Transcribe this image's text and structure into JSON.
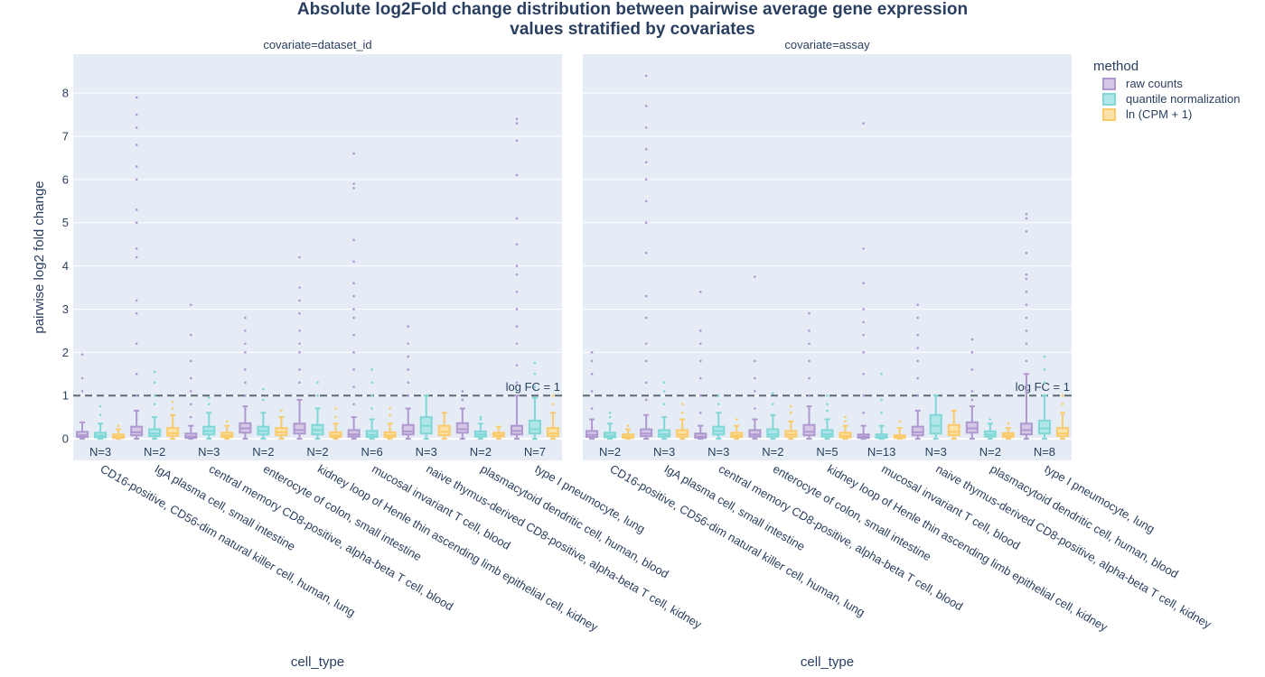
{
  "chart_data": {
    "type": "box",
    "title": "Absolute log2Fold change distribution between pairwise average gene expression values stratified by covariates",
    "title_lines": [
      "Absolute log2Fold change distribution between pairwise average gene expression",
      "values stratified by covariates"
    ],
    "ylabel": "pairwise log2 fold change",
    "xlabel": "cell_type",
    "ylim": [
      -0.5,
      8.9
    ],
    "yticks": [
      0,
      1,
      2,
      3,
      4,
      5,
      6,
      7,
      8
    ],
    "grid": true,
    "legend_title": "method",
    "legend_placement": "top-right",
    "colors": {
      "raw counts": "#b39bd0",
      "quantile normalization": "#7fdad8",
      "ln (CPM + 1)": "#fdd27c",
      "background": "#e5ecf6",
      "text": "#2a3f5f"
    },
    "series": [
      {
        "name": "raw counts",
        "fill": "#d5c7e6",
        "stroke": "#ae98cf"
      },
      {
        "name": "quantile normalization",
        "fill": "#b0e6ea",
        "stroke": "#7fd7d6"
      },
      {
        "name": "ln (CPM + 1)",
        "fill": "#fde2a8",
        "stroke": "#f9cb6c"
      }
    ],
    "categories": [
      "CD16-positive, CD56-dim natural killer cell, human, lung",
      "IgA plasma cell, small intestine",
      "central memory CD8-positive, alpha-beta T cell, blood",
      "enterocyte of colon, small intestine",
      "kidney loop of Henle thin ascending limb epithelial cell, kidney",
      "mucosal invariant T cell, blood",
      "naive thymus-derived CD8-positive, alpha-beta T cell, kidney",
      "plasmacytoid dendritic cell, human, blood",
      "type I pneumocyte, lung"
    ],
    "reference_line": {
      "y": 1,
      "label": "log FC = 1"
    },
    "panels": [
      {
        "label": "covariate=dataset_id",
        "counts": [
          "N=3",
          "N=2",
          "N=3",
          "N=2",
          "N=2",
          "N=6",
          "N=3",
          "N=2",
          "N=7"
        ],
        "boxes": [
          [
            [
              0,
              0.04,
              0.08,
              0.16,
              0.38,
              [
                1.1,
                1.4,
                1.95
              ]
            ],
            [
              0,
              0.03,
              0.07,
              0.14,
              0.35,
              [
                0.55,
                0.75
              ]
            ],
            [
              0,
              0.02,
              0.05,
              0.1,
              0.22,
              [
                0.3
              ]
            ]
          ],
          [
            [
              0,
              0.08,
              0.15,
              0.28,
              0.65,
              [
                1.0,
                1.5,
                2.2,
                2.9,
                3.2,
                4.2,
                4.4,
                5.0,
                5.3,
                6.0,
                6.3,
                6.8,
                7.2,
                7.5,
                7.9
              ]
            ],
            [
              0,
              0.06,
              0.12,
              0.22,
              0.5,
              [
                0.8,
                1.0,
                1.3,
                1.55
              ]
            ],
            [
              0,
              0.07,
              0.13,
              0.25,
              0.55,
              [
                0.7,
                0.85
              ]
            ]
          ],
          [
            [
              0,
              0.02,
              0.05,
              0.12,
              0.3,
              [
                0.5,
                0.8,
                1.1,
                1.4,
                1.8,
                2.4,
                3.1
              ]
            ],
            [
              0,
              0.1,
              0.18,
              0.28,
              0.6,
              [
                0.8,
                0.95
              ]
            ],
            [
              0,
              0.04,
              0.08,
              0.14,
              0.3,
              [
                0.4
              ]
            ]
          ],
          [
            [
              0,
              0.14,
              0.24,
              0.36,
              0.75,
              [
                1.0,
                1.3,
                1.6,
                2.0,
                2.2,
                2.5,
                2.8
              ]
            ],
            [
              0,
              0.1,
              0.18,
              0.28,
              0.6,
              [
                0.9,
                1.15
              ]
            ],
            [
              0,
              0.08,
              0.15,
              0.25,
              0.5,
              [
                0.65
              ]
            ]
          ],
          [
            [
              0,
              0.12,
              0.2,
              0.35,
              0.9,
              [
                1.3,
                1.6,
                2.0,
                2.2,
                2.5,
                2.9,
                3.2,
                3.5,
                4.2
              ]
            ],
            [
              0,
              0.1,
              0.2,
              0.32,
              0.7,
              [
                1.0,
                1.3
              ]
            ],
            [
              0,
              0.04,
              0.08,
              0.15,
              0.35,
              [
                0.5,
                0.7
              ]
            ]
          ],
          [
            [
              0,
              0.05,
              0.1,
              0.2,
              0.5,
              [
                0.8,
                1.2,
                1.6,
                2.0,
                2.4,
                2.8,
                3.0,
                3.3,
                3.6,
                4.1,
                4.6,
                5.8,
                5.9,
                6.6
              ]
            ],
            [
              0,
              0.04,
              0.09,
              0.18,
              0.45,
              [
                0.7,
                1.0,
                1.3,
                1.6
              ]
            ],
            [
              0,
              0.04,
              0.08,
              0.15,
              0.35,
              [
                0.55,
                0.7
              ]
            ]
          ],
          [
            [
              0,
              0.1,
              0.17,
              0.32,
              0.7,
              [
                1.0,
                1.3,
                1.6,
                1.9,
                2.2,
                2.6
              ]
            ],
            [
              0,
              0.12,
              0.3,
              0.5,
              1.0,
              []
            ],
            [
              0,
              0.08,
              0.16,
              0.3,
              0.6,
              []
            ]
          ],
          [
            [
              0,
              0.14,
              0.22,
              0.36,
              0.7,
              [
                0.9,
                1.1
              ]
            ],
            [
              0,
              0.05,
              0.1,
              0.17,
              0.35,
              [
                0.45,
                0.5
              ]
            ],
            [
              0,
              0.05,
              0.09,
              0.14,
              0.28,
              []
            ]
          ],
          [
            [
              0,
              0.1,
              0.18,
              0.3,
              1.0,
              [
                1.3,
                1.7,
                2.2,
                2.6,
                3.0,
                3.4,
                3.8,
                4.0,
                4.5,
                5.1,
                6.1,
                6.9,
                7.3,
                7.4
              ]
            ],
            [
              0,
              0.12,
              0.22,
              0.42,
              0.95,
              [
                1.2,
                1.5,
                1.75
              ]
            ],
            [
              0,
              0.06,
              0.12,
              0.25,
              0.6,
              [
                0.8,
                1.0
              ]
            ]
          ]
        ]
      },
      {
        "label": "covariate=assay",
        "counts": [
          "N=2",
          "N=3",
          "N=3",
          "N=2",
          "N=5",
          "N=13",
          "N=3",
          "N=2",
          "N=8"
        ],
        "boxes": [
          [
            [
              0,
              0.04,
              0.09,
              0.18,
              0.45,
              [
                0.7,
                1.1,
                1.5,
                1.8,
                2.0
              ]
            ],
            [
              0,
              0.03,
              0.07,
              0.14,
              0.35,
              [
                0.5,
                0.6
              ]
            ],
            [
              0,
              0.02,
              0.05,
              0.1,
              0.22,
              [
                0.3
              ]
            ]
          ],
          [
            [
              0,
              0.06,
              0.12,
              0.22,
              0.55,
              [
                0.9,
                1.3,
                1.8,
                2.2,
                2.8,
                3.3,
                4.3,
                5.0,
                5.5,
                6.0,
                6.4,
                6.7,
                7.2,
                7.7,
                8.4
              ]
            ],
            [
              0,
              0.05,
              0.1,
              0.2,
              0.5,
              [
                0.8,
                1.1,
                1.3
              ]
            ],
            [
              0,
              0.05,
              0.1,
              0.2,
              0.45,
              [
                0.6,
                0.8
              ]
            ]
          ],
          [
            [
              0,
              0.02,
              0.05,
              0.12,
              0.3,
              [
                0.6,
                1.0,
                1.4,
                1.8,
                2.2,
                2.5,
                3.4
              ]
            ],
            [
              0,
              0.1,
              0.18,
              0.28,
              0.6,
              [
                0.8,
                1.0
              ]
            ],
            [
              0,
              0.04,
              0.08,
              0.14,
              0.3,
              [
                0.45
              ]
            ]
          ],
          [
            [
              0,
              0.05,
              0.1,
              0.2,
              0.45,
              [
                0.7,
                1.1,
                1.4,
                1.8,
                3.75
              ]
            ],
            [
              0,
              0.05,
              0.1,
              0.22,
              0.55,
              [
                0.8,
                1.05
              ]
            ],
            [
              0,
              0.05,
              0.1,
              0.18,
              0.4,
              [
                0.6,
                0.75
              ]
            ]
          ],
          [
            [
              0,
              0.08,
              0.16,
              0.32,
              0.75,
              [
                1.0,
                1.4,
                1.8,
                2.2,
                2.5,
                2.9
              ]
            ],
            [
              0,
              0.05,
              0.1,
              0.2,
              0.45,
              [
                0.65,
                0.8,
                1.0
              ]
            ],
            [
              0,
              0.03,
              0.07,
              0.14,
              0.3,
              [
                0.4,
                0.5
              ]
            ]
          ],
          [
            [
              0,
              0.02,
              0.05,
              0.1,
              0.3,
              [
                0.6,
                1.0,
                1.5,
                2.0,
                2.4,
                2.7,
                3.0,
                3.6,
                4.4,
                7.3
              ]
            ],
            [
              0,
              0.02,
              0.05,
              0.1,
              0.3,
              [
                0.6,
                0.9,
                1.5
              ]
            ],
            [
              0,
              0.02,
              0.04,
              0.08,
              0.25,
              [
                0.4
              ]
            ]
          ],
          [
            [
              0,
              0.08,
              0.15,
              0.28,
              0.65,
              [
                1.0,
                1.4,
                1.8,
                2.1,
                2.4,
                2.8,
                3.1
              ]
            ],
            [
              0,
              0.12,
              0.3,
              0.55,
              1.0,
              []
            ],
            [
              0,
              0.08,
              0.16,
              0.32,
              0.65,
              []
            ]
          ],
          [
            [
              0,
              0.14,
              0.24,
              0.38,
              0.75,
              [
                0.9,
                1.1,
                1.6,
                2.0,
                2.3
              ]
            ],
            [
              0,
              0.05,
              0.1,
              0.17,
              0.35,
              [
                0.45
              ]
            ],
            [
              0,
              0.04,
              0.08,
              0.13,
              0.25,
              [
                0.35
              ]
            ]
          ],
          [
            [
              0,
              0.1,
              0.2,
              0.35,
              1.5,
              [
                1.8,
                2.2,
                2.5,
                2.8,
                3.1,
                3.4,
                3.7,
                3.8,
                4.3,
                4.8,
                5.1,
                5.2
              ]
            ],
            [
              0,
              0.12,
              0.24,
              0.42,
              1.0,
              [
                1.3,
                1.6,
                1.9
              ]
            ],
            [
              0,
              0.06,
              0.12,
              0.25,
              0.6,
              [
                0.8,
                1.0
              ]
            ]
          ]
        ]
      }
    ]
  }
}
